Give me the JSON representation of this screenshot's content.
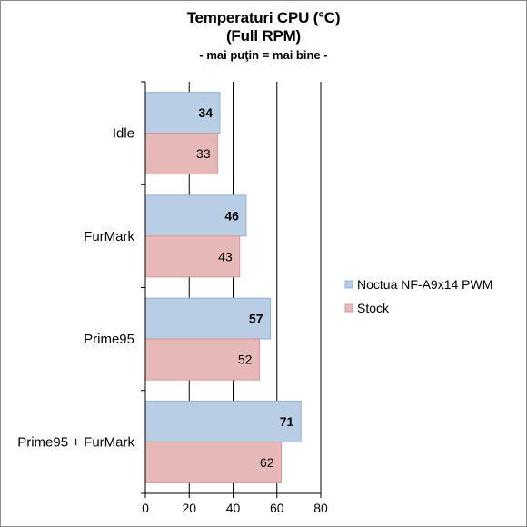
{
  "chart_data": {
    "type": "bar",
    "orientation": "horizontal",
    "title": "Temperaturi CPU (°C)",
    "title_line2": "(Full RPM)",
    "subtitle": "- mai puţin = mai bine -",
    "categories": [
      "Idle",
      "FurMark",
      "Prime95",
      "Prime95 + FurMark"
    ],
    "series": [
      {
        "name": "Noctua NF-A9x14 PWM",
        "values": [
          34,
          46,
          57,
          71
        ],
        "color": "#b9cde5",
        "border": "#95b3d7"
      },
      {
        "name": "Stock",
        "values": [
          33,
          43,
          52,
          62
        ],
        "color": "#e6b9b8",
        "border": "#d99694"
      }
    ],
    "xlim": [
      0,
      80
    ],
    "xticks": [
      0,
      20,
      40,
      60,
      80
    ],
    "grid": true,
    "legend_position": "right"
  }
}
